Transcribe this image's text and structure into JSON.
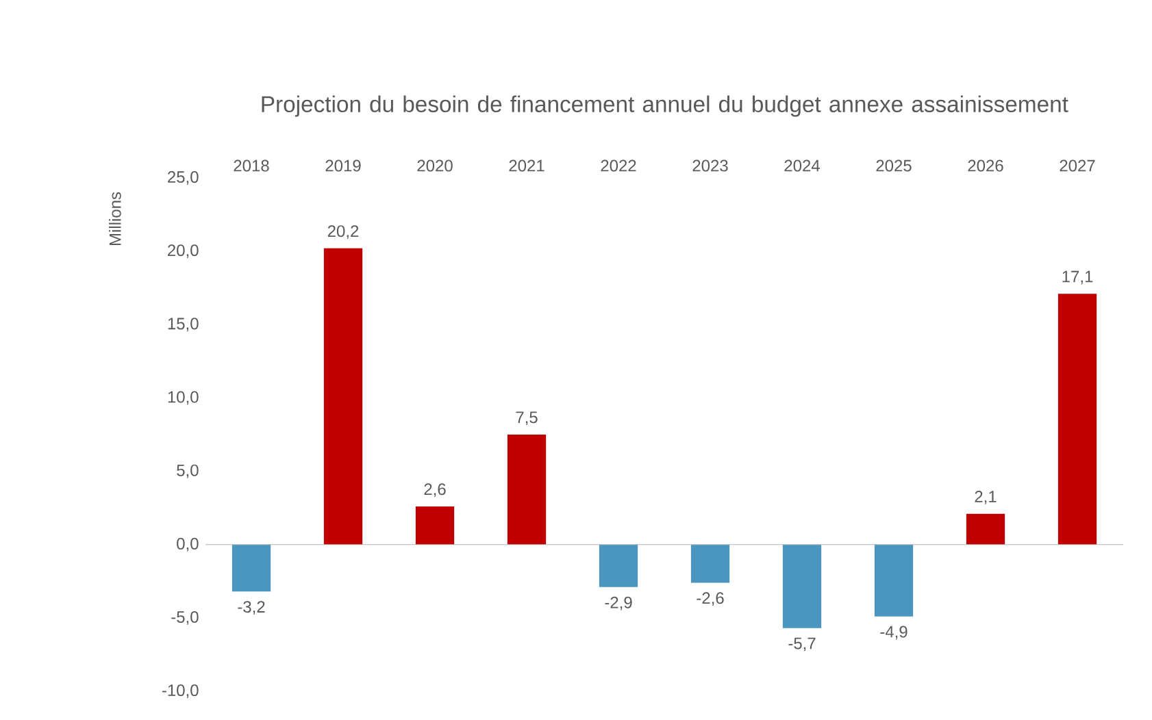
{
  "chart_data": {
    "type": "bar",
    "title": "Projection du besoin de financement annuel du budget annexe assainissement",
    "ylabel": "Millions",
    "categories": [
      "2018",
      "2019",
      "2020",
      "2021",
      "2022",
      "2023",
      "2024",
      "2025",
      "2026",
      "2027"
    ],
    "values": [
      -3.2,
      20.2,
      2.6,
      7.5,
      -2.9,
      -2.6,
      -5.7,
      -4.9,
      2.1,
      17.1
    ],
    "colors": [
      "#4a96bf",
      "#c00000",
      "#c00000",
      "#c00000",
      "#4a96bf",
      "#4a96bf",
      "#4a96bf",
      "#4a96bf",
      "#c00000",
      "#c00000"
    ],
    "value_labels": [
      "-3,2",
      "20,2",
      "2,6",
      "7,5",
      "-2,9",
      "-2,6",
      "-5,7",
      "-4,9",
      "2,1",
      "17,1"
    ],
    "ylim": [
      -10,
      25
    ],
    "yticks": [
      {
        "value": -10,
        "label": "-10,0"
      },
      {
        "value": -5,
        "label": "-5,0"
      },
      {
        "value": 0,
        "label": "0,0"
      },
      {
        "value": 5,
        "label": "5,0"
      },
      {
        "value": 10,
        "label": "10,0"
      },
      {
        "value": 15,
        "label": "15,0"
      },
      {
        "value": 20,
        "label": "20,0"
      },
      {
        "value": 25,
        "label": "25,0"
      }
    ],
    "tick_labels": true
  }
}
